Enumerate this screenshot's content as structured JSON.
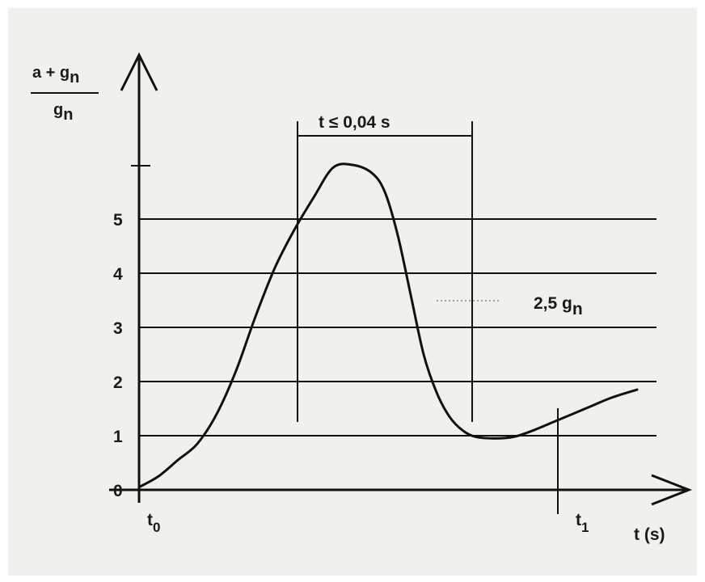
{
  "chart_data": {
    "type": "line",
    "ylabel_numerator": "a + g",
    "ylabel_denominator": "g",
    "ylabel_subscript": "n",
    "y_ticks": [
      "0",
      "1",
      "2",
      "3",
      "4",
      "5"
    ],
    "ylim": [
      0,
      6.2
    ],
    "xlabel": "t (s)",
    "x_markers": [
      {
        "base": "t",
        "sub": "0"
      },
      {
        "base": "t",
        "sub": "1"
      }
    ],
    "interval_annotation": "t ≤  0,04 s",
    "level_annotation": {
      "text": "2,5 g",
      "sub": "n"
    },
    "grid": "horizontal lines at 1–5",
    "series": [
      {
        "x": [
          0,
          0.03,
          0.06,
          0.09,
          0.12,
          0.15,
          0.18,
          0.21,
          0.24,
          0.27,
          0.3,
          0.33,
          0.36,
          0.38,
          0.4,
          0.42,
          0.44,
          0.46,
          0.48,
          0.5,
          0.52,
          0.55,
          0.58,
          0.61,
          0.64,
          0.67,
          0.7,
          0.73,
          0.77
        ],
        "y": [
          0.05,
          0.25,
          0.55,
          0.85,
          1.4,
          2.2,
          3.2,
          4.1,
          4.8,
          5.4,
          5.95,
          6.0,
          5.85,
          5.5,
          4.7,
          3.6,
          2.5,
          1.8,
          1.35,
          1.1,
          0.98,
          0.95,
          0.98,
          1.1,
          1.25,
          1.4,
          1.55,
          1.7,
          1.85
        ]
      }
    ]
  }
}
